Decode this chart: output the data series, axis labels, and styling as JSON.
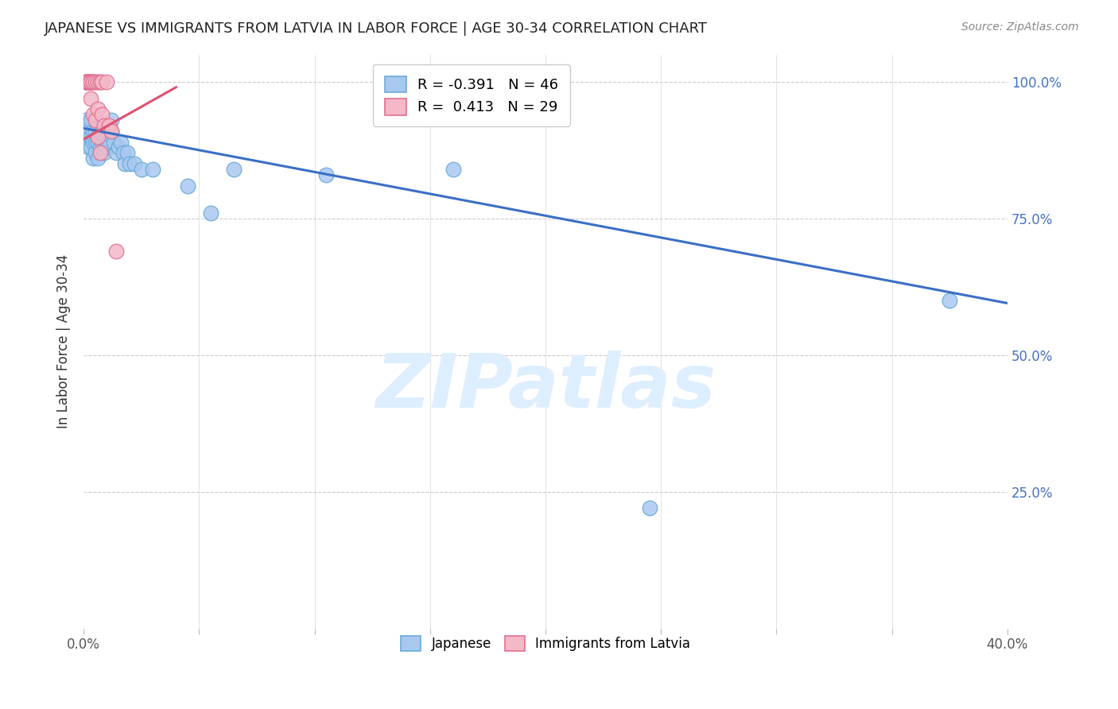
{
  "title": "JAPANESE VS IMMIGRANTS FROM LATVIA IN LABOR FORCE | AGE 30-34 CORRELATION CHART",
  "source": "Source: ZipAtlas.com",
  "ylabel": "In Labor Force | Age 30-34",
  "xlim": [
    0.0,
    0.4
  ],
  "ylim": [
    0.0,
    1.05
  ],
  "x_ticks": [
    0.0,
    0.05,
    0.1,
    0.15,
    0.2,
    0.25,
    0.3,
    0.35,
    0.4
  ],
  "y_ticks": [
    0.0,
    0.25,
    0.5,
    0.75,
    1.0
  ],
  "R_japanese": -0.391,
  "N_japanese": 46,
  "R_latvia": 0.413,
  "N_latvia": 29,
  "japanese_color": "#a8c8f0",
  "japanese_edge_color": "#6aaad8",
  "latvia_color": "#f4b8c8",
  "latvia_edge_color": "#e07090",
  "trendline_japanese_color": "#3a6fc4",
  "trendline_latvia_color": "#e05070",
  "watermark": "ZIPatlas",
  "watermark_color": "#ddeeff",
  "background_color": "#ffffff",
  "grid_color": "#cccccc",
  "japanese_x": [
    0.001,
    0.001,
    0.002,
    0.002,
    0.002,
    0.003,
    0.003,
    0.003,
    0.004,
    0.004,
    0.004,
    0.005,
    0.005,
    0.005,
    0.006,
    0.006,
    0.006,
    0.007,
    0.007,
    0.008,
    0.008,
    0.009,
    0.009,
    0.01,
    0.01,
    0.011,
    0.012,
    0.012,
    0.013,
    0.014,
    0.015,
    0.016,
    0.017,
    0.018,
    0.019,
    0.02,
    0.022,
    0.025,
    0.03,
    0.045,
    0.055,
    0.065,
    0.105,
    0.16,
    0.245,
    0.375
  ],
  "japanese_y": [
    0.93,
    0.9,
    0.92,
    0.91,
    0.88,
    0.93,
    0.9,
    0.88,
    0.91,
    0.89,
    0.86,
    0.91,
    0.89,
    0.87,
    0.92,
    0.89,
    0.86,
    0.91,
    0.88,
    0.92,
    0.89,
    0.9,
    0.87,
    0.9,
    0.88,
    0.89,
    0.93,
    0.91,
    0.89,
    0.87,
    0.88,
    0.89,
    0.87,
    0.85,
    0.87,
    0.85,
    0.85,
    0.84,
    0.84,
    0.81,
    0.76,
    0.84,
    0.83,
    0.84,
    0.22,
    0.6
  ],
  "latvia_x": [
    0.001,
    0.001,
    0.001,
    0.002,
    0.002,
    0.002,
    0.002,
    0.002,
    0.003,
    0.003,
    0.003,
    0.003,
    0.004,
    0.004,
    0.004,
    0.005,
    0.005,
    0.006,
    0.006,
    0.006,
    0.007,
    0.007,
    0.008,
    0.008,
    0.009,
    0.01,
    0.011,
    0.012,
    0.014
  ],
  "latvia_y": [
    1.0,
    1.0,
    1.0,
    1.0,
    1.0,
    1.0,
    1.0,
    1.0,
    1.0,
    1.0,
    1.0,
    0.97,
    1.0,
    1.0,
    0.94,
    1.0,
    0.93,
    1.0,
    0.95,
    0.9,
    1.0,
    0.87,
    1.0,
    0.94,
    0.92,
    1.0,
    0.92,
    0.91,
    0.69
  ],
  "trendline_j_x0": 0.0,
  "trendline_j_x1": 0.4,
  "trendline_j_y0": 0.915,
  "trendline_j_y1": 0.595,
  "trendline_l_x0": 0.0,
  "trendline_l_x1": 0.04,
  "trendline_l_y0": 0.895,
  "trendline_l_y1": 0.99
}
